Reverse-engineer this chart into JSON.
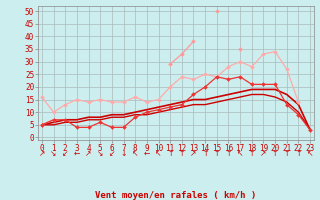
{
  "x": [
    0,
    1,
    2,
    3,
    4,
    5,
    6,
    7,
    8,
    9,
    10,
    11,
    12,
    13,
    14,
    15,
    16,
    17,
    18,
    19,
    20,
    21,
    22,
    23
  ],
  "background_color": "#cceeee",
  "grid_color": "#aabbbb",
  "xlabel": "Vent moyen/en rafales ( km/h )",
  "xlabel_color": "#cc0000",
  "yticks": [
    0,
    5,
    10,
    15,
    20,
    25,
    30,
    35,
    40,
    45,
    50
  ],
  "ylim": [
    -1,
    52
  ],
  "xlim": [
    -0.3,
    23.3
  ],
  "series": [
    {
      "name": "rafales_peak",
      "color": "#ff9999",
      "linewidth": 0.9,
      "marker": "D",
      "markersize": 2.0,
      "y": [
        5,
        7,
        null,
        null,
        null,
        null,
        null,
        null,
        null,
        null,
        null,
        29,
        33,
        38,
        null,
        50,
        null,
        35,
        null,
        null,
        null,
        null,
        null,
        null
      ]
    },
    {
      "name": "rafales_smooth",
      "color": "#ffaaaa",
      "linewidth": 0.9,
      "marker": "D",
      "markersize": 2.0,
      "y": [
        16,
        10,
        13,
        15,
        14,
        15,
        14,
        14,
        16,
        14,
        15,
        20,
        24,
        23,
        25,
        24,
        28,
        30,
        28,
        33,
        34,
        27,
        14,
        null
      ]
    },
    {
      "name": "vent_moyen_marked",
      "color": "#ee3333",
      "linewidth": 0.9,
      "marker": "D",
      "markersize": 2.0,
      "y": [
        5,
        7,
        7,
        4,
        4,
        6,
        4,
        4,
        8,
        10,
        11,
        12,
        13,
        17,
        20,
        24,
        23,
        24,
        21,
        21,
        21,
        13,
        9,
        3
      ]
    },
    {
      "name": "vent_moyen_line1",
      "color": "#cc0000",
      "linewidth": 1.2,
      "marker": null,
      "markersize": 0,
      "y": [
        5,
        6,
        7,
        7,
        8,
        8,
        9,
        9,
        10,
        11,
        12,
        13,
        14,
        15,
        15,
        16,
        17,
        18,
        19,
        19,
        19,
        17,
        13,
        3
      ]
    },
    {
      "name": "vent_moyen_line2",
      "color": "#cc0000",
      "linewidth": 1.0,
      "marker": null,
      "markersize": 0,
      "y": [
        5,
        5,
        6,
        6,
        7,
        7,
        8,
        8,
        9,
        9,
        10,
        11,
        12,
        13,
        13,
        14,
        15,
        16,
        17,
        17,
        16,
        14,
        10,
        3
      ]
    }
  ],
  "wind_arrows": [
    "↗",
    "↘",
    "↙",
    "←",
    "↗",
    "↘",
    "↙",
    "↓",
    "↖",
    "←",
    "↖",
    "↑",
    "↑",
    "↗",
    "↑",
    "↑",
    "↑",
    "↖",
    "↑",
    "↗",
    "↑",
    "↑",
    "↑",
    "↖"
  ],
  "arrow_color": "#cc0000",
  "tick_label_color": "#cc0000",
  "tick_fontsize": 5.5,
  "xlabel_fontsize": 6.5,
  "arrow_fontsize": 5.5
}
